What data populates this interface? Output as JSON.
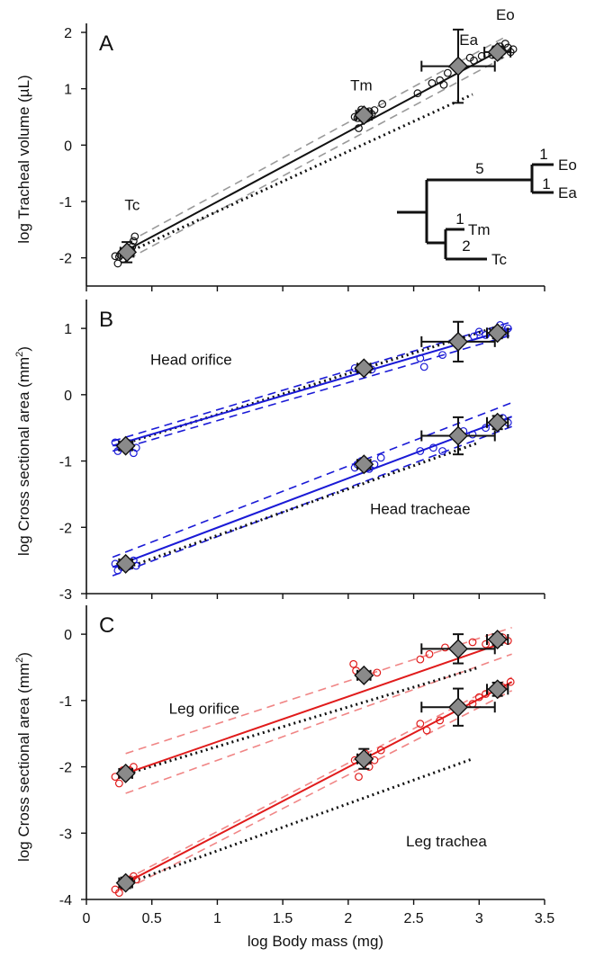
{
  "chart_data": [
    {
      "panel": "A",
      "type": "scatter",
      "ylabel": "log Tracheal volume (µL)",
      "ylim": [
        -2.5,
        2
      ],
      "yticks": [
        -2,
        -1,
        0,
        1,
        2
      ],
      "xlim": [
        0,
        3.5
      ],
      "fit": {
        "from": [
          0.32,
          -1.85
        ],
        "to": [
          3.2,
          1.73
        ],
        "color": "#111111"
      },
      "ci_upper": {
        "from": [
          0.32,
          -1.72
        ],
        "to": [
          3.2,
          1.92
        ],
        "color": "#999999"
      },
      "ci_lower": {
        "from": [
          0.32,
          -2.02
        ],
        "to": [
          3.2,
          1.57
        ],
        "color": "#999999"
      },
      "reference": {
        "from": [
          0.32,
          -1.9
        ],
        "to": [
          2.95,
          0.9
        ]
      },
      "points_color": "#111111",
      "points": [
        [
          0.22,
          -1.97
        ],
        [
          0.24,
          -2.1
        ],
        [
          0.26,
          -1.95
        ],
        [
          0.28,
          -2.02
        ],
        [
          0.3,
          -1.9
        ],
        [
          0.33,
          -1.85
        ],
        [
          0.35,
          -1.8
        ],
        [
          0.36,
          -1.7
        ],
        [
          0.37,
          -1.62
        ],
        [
          0.25,
          -1.98
        ],
        [
          2.05,
          0.5
        ],
        [
          2.07,
          0.48
        ],
        [
          2.09,
          0.55
        ],
        [
          2.1,
          0.63
        ],
        [
          2.11,
          0.58
        ],
        [
          2.12,
          0.45
        ],
        [
          2.14,
          0.52
        ],
        [
          2.16,
          0.6
        ],
        [
          2.18,
          0.55
        ],
        [
          2.2,
          0.62
        ],
        [
          2.08,
          0.3
        ],
        [
          2.26,
          0.73
        ],
        [
          2.53,
          0.92
        ],
        [
          2.64,
          1.1
        ],
        [
          2.7,
          1.15
        ],
        [
          2.73,
          1.07
        ],
        [
          2.76,
          1.28
        ],
        [
          2.85,
          1.35
        ],
        [
          2.93,
          1.55
        ],
        [
          2.96,
          1.5
        ],
        [
          3.02,
          1.58
        ],
        [
          3.1,
          1.6
        ],
        [
          3.12,
          1.7
        ],
        [
          3.14,
          1.63
        ],
        [
          3.16,
          1.75
        ],
        [
          3.18,
          1.66
        ],
        [
          3.2,
          1.8
        ],
        [
          3.22,
          1.73
        ],
        [
          3.24,
          1.65
        ],
        [
          3.26,
          1.7
        ]
      ],
      "means": [
        {
          "x": 0.31,
          "y": -1.9,
          "xerr": 0.05,
          "yerr": 0.18,
          "label": "Tc"
        },
        {
          "x": 2.12,
          "y": 0.53,
          "xerr": 0.06,
          "yerr": 0.1,
          "label": "Tm"
        },
        {
          "x": 2.84,
          "y": 1.4,
          "xerr": 0.28,
          "yerr": 0.65,
          "label": "Ea"
        },
        {
          "x": 3.14,
          "y": 1.65,
          "xerr": 0.1,
          "yerr": 0.1,
          "label": "Eo"
        }
      ],
      "annotations": [
        {
          "text": "Tc",
          "x": 0.35,
          "y": -1.15
        },
        {
          "text": "Tm",
          "x": 2.1,
          "y": 0.97
        },
        {
          "text": "Ea",
          "x": 2.92,
          "y": 1.78
        },
        {
          "text": "Eo",
          "x": 3.2,
          "y": 2.22
        }
      ],
      "tree": {
        "branch_labels": [
          "5",
          "1",
          "1",
          "1",
          "2"
        ],
        "taxa": [
          "Eo",
          "Ea",
          "Tm",
          "Tc"
        ]
      }
    },
    {
      "panel": "B",
      "type": "scatter",
      "ylabel": "log Cross sectional area (mm",
      "ylabel_sup": "2",
      "ylabel_end": ")",
      "ylim": [
        -3,
        1.3
      ],
      "yticks": [
        -3,
        -2,
        -1,
        0,
        1
      ],
      "xlim": [
        0,
        3.5
      ],
      "groups": [
        {
          "name": "Head orifice",
          "color": "#1a1ad6",
          "fit": {
            "from": [
              0.2,
              -0.77
            ],
            "to": [
              3.25,
              1.0
            ]
          },
          "ci_upper": {
            "from": [
              0.2,
              -0.7
            ],
            "to": [
              3.25,
              1.1
            ]
          },
          "ci_lower": {
            "from": [
              0.2,
              -0.85
            ],
            "to": [
              3.25,
              0.9
            ]
          },
          "reference": {
            "from": [
              0.32,
              -0.72
            ],
            "to": [
              3.1,
              1.0
            ]
          },
          "points": [
            [
              0.22,
              -0.72
            ],
            [
              0.24,
              -0.85
            ],
            [
              0.26,
              -0.8
            ],
            [
              0.3,
              -0.77
            ],
            [
              0.33,
              -0.73
            ],
            [
              0.36,
              -0.88
            ],
            [
              0.38,
              -0.8
            ],
            [
              2.05,
              0.4
            ],
            [
              2.08,
              0.38
            ],
            [
              2.1,
              0.42
            ],
            [
              2.12,
              0.35
            ],
            [
              2.15,
              0.4
            ],
            [
              2.18,
              0.38
            ],
            [
              2.55,
              0.55
            ],
            [
              2.58,
              0.42
            ],
            [
              2.72,
              0.6
            ],
            [
              2.96,
              0.88
            ],
            [
              3.0,
              0.95
            ],
            [
              3.05,
              0.9
            ],
            [
              3.12,
              0.95
            ],
            [
              3.16,
              1.05
            ],
            [
              3.2,
              0.95
            ],
            [
              3.22,
              1.0
            ]
          ],
          "means": [
            {
              "x": 0.3,
              "y": -0.77,
              "xerr": 0.05,
              "yerr": 0.06
            },
            {
              "x": 2.12,
              "y": 0.4,
              "xerr": 0.05,
              "yerr": 0.06
            },
            {
              "x": 2.84,
              "y": 0.8,
              "xerr": 0.28,
              "yerr": 0.3
            },
            {
              "x": 3.14,
              "y": 0.93,
              "xerr": 0.08,
              "yerr": 0.08
            }
          ],
          "label_pos": [
            0.8,
            0.45
          ]
        },
        {
          "name": "Head tracheae",
          "color": "#1a1ad6",
          "fit": {
            "from": [
              0.2,
              -2.6
            ],
            "to": [
              3.25,
              -0.33
            ]
          },
          "ci_upper": {
            "from": [
              0.2,
              -2.45
            ],
            "to": [
              3.25,
              -0.12
            ]
          },
          "ci_lower": {
            "from": [
              0.2,
              -2.73
            ],
            "to": [
              3.25,
              -0.48
            ]
          },
          "reference": {
            "from": [
              0.32,
              -2.6
            ],
            "to": [
              3.0,
              -0.72
            ]
          },
          "points": [
            [
              0.22,
              -2.55
            ],
            [
              0.24,
              -2.65
            ],
            [
              0.27,
              -2.6
            ],
            [
              0.3,
              -2.5
            ],
            [
              0.33,
              -2.55
            ],
            [
              0.36,
              -2.5
            ],
            [
              0.38,
              -2.58
            ],
            [
              2.05,
              -1.1
            ],
            [
              2.07,
              -1.05
            ],
            [
              2.1,
              -1.0
            ],
            [
              2.13,
              -1.08
            ],
            [
              2.16,
              -1.12
            ],
            [
              2.2,
              -1.05
            ],
            [
              2.25,
              -0.95
            ],
            [
              2.55,
              -0.85
            ],
            [
              2.65,
              -0.8
            ],
            [
              2.72,
              -0.85
            ],
            [
              2.88,
              -0.55
            ],
            [
              2.95,
              -0.6
            ],
            [
              3.05,
              -0.5
            ],
            [
              3.12,
              -0.45
            ],
            [
              3.18,
              -0.35
            ],
            [
              3.22,
              -0.42
            ]
          ],
          "means": [
            {
              "x": 0.3,
              "y": -2.55,
              "xerr": 0.05,
              "yerr": 0.06
            },
            {
              "x": 2.12,
              "y": -1.05,
              "xerr": 0.05,
              "yerr": 0.06
            },
            {
              "x": 2.84,
              "y": -0.62,
              "xerr": 0.28,
              "yerr": 0.28
            },
            {
              "x": 3.14,
              "y": -0.42,
              "xerr": 0.08,
              "yerr": 0.1
            }
          ],
          "label_pos": [
            2.55,
            -1.8
          ]
        }
      ]
    },
    {
      "panel": "C",
      "type": "scatter",
      "ylabel": "log Cross sectional area (mm",
      "ylabel_sup": "2",
      "ylabel_end": ")",
      "xlabel": "log Body mass (mg)",
      "ylim": [
        -4,
        0.3
      ],
      "yticks": [
        -4,
        -3,
        -2,
        -1,
        0
      ],
      "xlim": [
        0,
        3.5
      ],
      "xticks": [
        "0",
        "0.5",
        "1",
        "1.5",
        "2",
        "2.5",
        "3",
        "3.5"
      ],
      "groups": [
        {
          "name": "Leg orifice",
          "color": "#e01b1b",
          "ci_color": "#f08585",
          "fit": {
            "from": [
              0.3,
              -2.1
            ],
            "to": [
              3.2,
              -0.12
            ]
          },
          "ci_upper": {
            "from": [
              0.3,
              -1.8
            ],
            "to": [
              3.25,
              0.1
            ]
          },
          "ci_lower": {
            "from": [
              0.3,
              -2.4
            ],
            "to": [
              3.25,
              -0.3
            ]
          },
          "reference": {
            "from": [
              0.32,
              -2.1
            ],
            "to": [
              3.0,
              -0.5
            ]
          },
          "points": [
            [
              0.22,
              -2.15
            ],
            [
              0.25,
              -2.25
            ],
            [
              0.28,
              -2.05
            ],
            [
              0.3,
              -2.1
            ],
            [
              0.33,
              -2.05
            ],
            [
              0.36,
              -2.0
            ],
            [
              2.04,
              -0.45
            ],
            [
              2.06,
              -0.55
            ],
            [
              2.1,
              -0.65
            ],
            [
              2.14,
              -0.6
            ],
            [
              2.22,
              -0.58
            ],
            [
              2.55,
              -0.38
            ],
            [
              2.62,
              -0.3
            ],
            [
              2.74,
              -0.2
            ],
            [
              2.95,
              -0.12
            ],
            [
              3.05,
              -0.15
            ],
            [
              3.12,
              -0.08
            ],
            [
              3.18,
              -0.05
            ],
            [
              3.22,
              -0.1
            ]
          ],
          "means": [
            {
              "x": 0.3,
              "y": -2.1,
              "xerr": 0.05,
              "yerr": 0.06
            },
            {
              "x": 2.12,
              "y": -0.62,
              "xerr": 0.05,
              "yerr": 0.06
            },
            {
              "x": 2.84,
              "y": -0.22,
              "xerr": 0.28,
              "yerr": 0.22
            },
            {
              "x": 3.14,
              "y": -0.08,
              "xerr": 0.08,
              "yerr": 0.08
            }
          ],
          "label_pos": [
            0.9,
            -1.2
          ]
        },
        {
          "name": "Leg trachea",
          "color": "#e01b1b",
          "ci_color": "#f08585",
          "fit": {
            "from": [
              0.3,
              -3.75
            ],
            "to": [
              3.25,
              -0.72
            ]
          },
          "ci_upper": {
            "from": [
              0.3,
              -3.7
            ],
            "to": [
              3.25,
              -0.65
            ]
          },
          "ci_lower": {
            "from": [
              0.3,
              -3.85
            ],
            "to": [
              3.25,
              -0.85
            ]
          },
          "reference": {
            "from": [
              0.32,
              -3.75
            ],
            "to": [
              2.95,
              -1.88
            ]
          },
          "points": [
            [
              0.22,
              -3.85
            ],
            [
              0.25,
              -3.9
            ],
            [
              0.28,
              -3.8
            ],
            [
              0.3,
              -3.75
            ],
            [
              0.33,
              -3.7
            ],
            [
              0.36,
              -3.65
            ],
            [
              0.38,
              -3.7
            ],
            [
              2.05,
              -1.9
            ],
            [
              2.08,
              -2.15
            ],
            [
              2.1,
              -1.85
            ],
            [
              2.13,
              -1.8
            ],
            [
              2.16,
              -2.0
            ],
            [
              2.2,
              -1.9
            ],
            [
              2.25,
              -1.75
            ],
            [
              2.55,
              -1.35
            ],
            [
              2.6,
              -1.45
            ],
            [
              2.7,
              -1.3
            ],
            [
              2.95,
              -1.05
            ],
            [
              3.0,
              -0.95
            ],
            [
              3.05,
              -0.9
            ],
            [
              3.12,
              -0.85
            ],
            [
              3.18,
              -0.8
            ],
            [
              3.24,
              -0.72
            ]
          ],
          "means": [
            {
              "x": 0.3,
              "y": -3.75,
              "xerr": 0.05,
              "yerr": 0.08
            },
            {
              "x": 2.12,
              "y": -1.88,
              "xerr": 0.05,
              "yerr": 0.15
            },
            {
              "x": 2.84,
              "y": -1.1,
              "xerr": 0.28,
              "yerr": 0.28
            },
            {
              "x": 3.14,
              "y": -0.83,
              "xerr": 0.08,
              "yerr": 0.1
            }
          ],
          "label_pos": [
            2.75,
            -3.2
          ]
        }
      ]
    }
  ]
}
